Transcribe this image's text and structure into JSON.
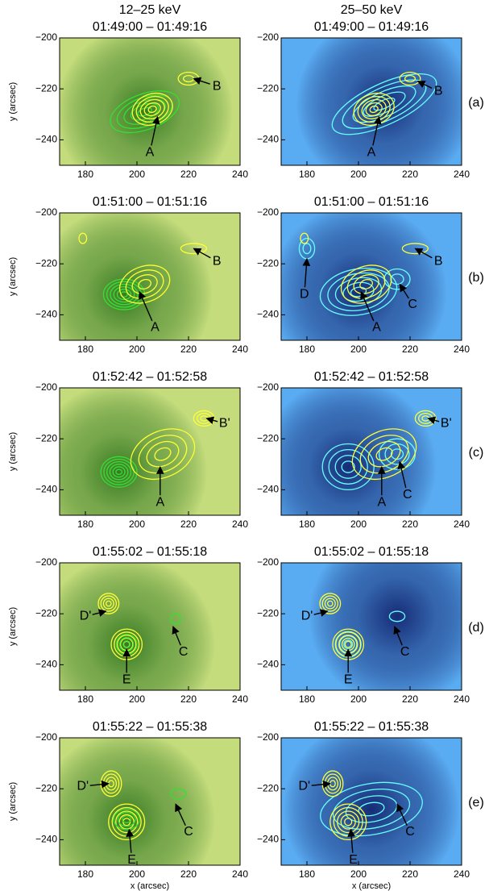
{
  "chart_data": [
    {
      "type": "image",
      "supertitle": "12–25 keV",
      "title": "01:49:00 – 01:49:16",
      "ylabel": "y (arcsec)",
      "background": [
        "#c4dc7c",
        "#1f6a14"
      ],
      "contour_colors": [
        "#33e033",
        "#ffff33"
      ],
      "annotations": [
        "A",
        "B"
      ],
      "xlim": [
        170,
        240
      ],
      "ylim": [
        -250,
        -200
      ],
      "xticks": [
        180,
        200,
        220,
        240
      ],
      "yticks": [
        {
          "value": -240,
          "label": "−240"
        },
        {
          "value": -220,
          "label": "−220"
        },
        {
          "value": -200,
          "label": "−200"
        }
      ]
    },
    {
      "type": "image",
      "supertitle": "25–50 keV",
      "title": "01:49:00 – 01:49:16",
      "panel_label": "(a)",
      "background": [
        "#5aacf2",
        "#0a1660"
      ],
      "contour_colors": [
        "#66ffff",
        "#ffff33"
      ],
      "annotations": [
        "A",
        "B"
      ],
      "xlim": [
        170,
        240
      ],
      "ylim": [
        -250,
        -200
      ],
      "xticks": [
        180,
        200,
        220,
        240
      ],
      "yticks": [
        {
          "value": -240,
          "label": "−240"
        },
        {
          "value": -220,
          "label": "−220"
        },
        {
          "value": -200,
          "label": "−200"
        }
      ]
    },
    {
      "type": "image",
      "title": "01:51:00 – 01:51:16",
      "ylabel": "y (arcsec)",
      "background": [
        "#c4dc7c",
        "#1f6a14"
      ],
      "contour_colors": [
        "#33e033",
        "#ffff33"
      ],
      "annotations": [
        "A",
        "B"
      ],
      "xlim": [
        170,
        240
      ],
      "ylim": [
        -250,
        -200
      ],
      "xticks": [
        180,
        200,
        220,
        240
      ],
      "yticks": [
        {
          "value": -240,
          "label": "−240"
        },
        {
          "value": -220,
          "label": "−220"
        },
        {
          "value": -200,
          "label": "−200"
        }
      ]
    },
    {
      "type": "image",
      "title": "01:51:00 – 01:51:16",
      "panel_label": "(b)",
      "background": [
        "#5aacf2",
        "#0a1660"
      ],
      "contour_colors": [
        "#66ffff",
        "#ffff33"
      ],
      "annotations": [
        "D",
        "A",
        "C",
        "B"
      ],
      "xlim": [
        170,
        240
      ],
      "ylim": [
        -250,
        -200
      ],
      "xticks": [
        180,
        200,
        220,
        240
      ],
      "yticks": [
        {
          "value": -240,
          "label": "−240"
        },
        {
          "value": -220,
          "label": "−220"
        },
        {
          "value": -200,
          "label": "−200"
        }
      ]
    },
    {
      "type": "image",
      "title": "01:52:42 – 01:52:58",
      "ylabel": "y (arcsec)",
      "background": [
        "#c4dc7c",
        "#1f6a14"
      ],
      "contour_colors": [
        "#33e033",
        "#ffff33"
      ],
      "annotations": [
        "A",
        "B'"
      ],
      "xlim": [
        170,
        240
      ],
      "ylim": [
        -250,
        -200
      ],
      "xticks": [
        180,
        200,
        220,
        240
      ],
      "yticks": [
        {
          "value": -240,
          "label": "−240"
        },
        {
          "value": -220,
          "label": "−220"
        },
        {
          "value": -200,
          "label": "−200"
        }
      ]
    },
    {
      "type": "image",
      "title": "01:52:42 – 01:52:58",
      "panel_label": "(c)",
      "background": [
        "#5aacf2",
        "#0a1660"
      ],
      "contour_colors": [
        "#66ffff",
        "#ffff33"
      ],
      "annotations": [
        "A",
        "C",
        "B'"
      ],
      "xlim": [
        170,
        240
      ],
      "ylim": [
        -250,
        -200
      ],
      "xticks": [
        180,
        200,
        220,
        240
      ],
      "yticks": [
        {
          "value": -240,
          "label": "−240"
        },
        {
          "value": -220,
          "label": "−220"
        },
        {
          "value": -200,
          "label": "−200"
        }
      ]
    },
    {
      "type": "image",
      "title": "01:55:02 – 01:55:18",
      "ylabel": "y (arcsec)",
      "background": [
        "#c4dc7c",
        "#1f6a14"
      ],
      "contour_colors": [
        "#33e033",
        "#ffff33"
      ],
      "annotations": [
        "D'",
        "E",
        "C"
      ],
      "xlim": [
        170,
        240
      ],
      "ylim": [
        -250,
        -200
      ],
      "xticks": [
        180,
        200,
        220,
        240
      ],
      "yticks": [
        {
          "value": -240,
          "label": "−240"
        },
        {
          "value": -220,
          "label": "−220"
        },
        {
          "value": -200,
          "label": "−200"
        }
      ]
    },
    {
      "type": "image",
      "title": "01:55:02 – 01:55:18",
      "panel_label": "(d)",
      "background": [
        "#5aacf2",
        "#0a1660"
      ],
      "contour_colors": [
        "#66ffff",
        "#ffff33"
      ],
      "annotations": [
        "D'",
        "E",
        "C"
      ],
      "xlim": [
        170,
        240
      ],
      "ylim": [
        -250,
        -200
      ],
      "xticks": [
        180,
        200,
        220,
        240
      ],
      "yticks": [
        {
          "value": -240,
          "label": "−240"
        },
        {
          "value": -220,
          "label": "−220"
        },
        {
          "value": -200,
          "label": "−200"
        }
      ]
    },
    {
      "type": "image",
      "title": "01:55:22 – 01:55:38",
      "ylabel": "y (arcsec)",
      "xlabel": "x (arcsec)",
      "background": [
        "#c4dc7c",
        "#1f6a14"
      ],
      "contour_colors": [
        "#33e033",
        "#ffff33"
      ],
      "annotations": [
        "D'",
        "E",
        "C"
      ],
      "xlim": [
        170,
        240
      ],
      "ylim": [
        -250,
        -200
      ],
      "xticks": [
        180,
        200,
        220,
        240
      ],
      "yticks": [
        {
          "value": -240,
          "label": "−240"
        },
        {
          "value": -220,
          "label": "−220"
        },
        {
          "value": -200,
          "label": "−200"
        }
      ]
    },
    {
      "type": "image",
      "title": "01:55:22 – 01:55:38",
      "xlabel": "x (arcsec)",
      "panel_label": "(e)",
      "background": [
        "#5aacf2",
        "#0a1660"
      ],
      "contour_colors": [
        "#66ffff",
        "#ffff33"
      ],
      "annotations": [
        "D'",
        "E",
        "C"
      ],
      "xlim": [
        170,
        240
      ],
      "ylim": [
        -250,
        -200
      ],
      "xticks": [
        180,
        200,
        220,
        240
      ],
      "yticks": [
        {
          "value": -240,
          "label": "−240"
        },
        {
          "value": -220,
          "label": "−220"
        },
        {
          "value": -200,
          "label": "−200"
        }
      ]
    }
  ]
}
